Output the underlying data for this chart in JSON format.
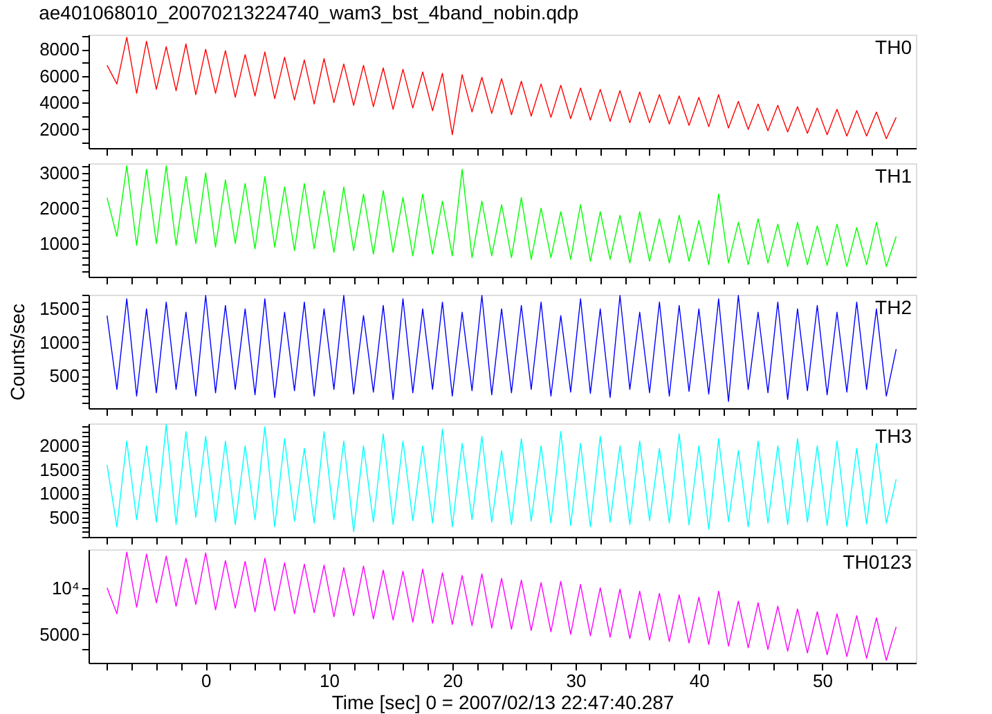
{
  "chart_data": [
    {
      "type": "line",
      "title": "ae401068010_20070213224740_wam3_bst_4band_nobin.qdp",
      "tick_labels": "y",
      "x": [
        -8,
        -7.2,
        -6.4,
        -5.6,
        -4.8,
        -4,
        -3.2,
        -2.4,
        -1.6,
        -0.8,
        0,
        0.8,
        1.6,
        2.4,
        3.2,
        4,
        4.8,
        5.6,
        6.4,
        7.2,
        8,
        8.8,
        9.6,
        10.4,
        11.2,
        12,
        12.8,
        13.6,
        14.4,
        15.2,
        16,
        16.8,
        17.6,
        18.4,
        19.2,
        20,
        20.8,
        21.6,
        22.4,
        23.2,
        24,
        24.8,
        25.6,
        26.4,
        27.2,
        28,
        28.8,
        29.6,
        30.4,
        31.2,
        32,
        32.8,
        33.6,
        34.4,
        35.2,
        36,
        36.8,
        37.6,
        38.4,
        39.2,
        40,
        40.8,
        41.6,
        42.4,
        43.2,
        44,
        44.8,
        45.6,
        46.4,
        47.2,
        48,
        48.8,
        49.6,
        50.4,
        51.2,
        52,
        52.8,
        53.6,
        54.4,
        55.2,
        56
      ],
      "series": [
        {
          "name": "TH0",
          "color": "#ff0000",
          "values": [
            6800,
            5400,
            8900,
            4700,
            8600,
            5000,
            8200,
            4900,
            8400,
            4600,
            8000,
            4700,
            7900,
            4400,
            7600,
            4500,
            7800,
            4300,
            7400,
            4200,
            7200,
            3900,
            7300,
            4000,
            6900,
            3800,
            6800,
            3700,
            6600,
            3500,
            6500,
            3600,
            6300,
            3400,
            6200,
            1600,
            6100,
            3300,
            5900,
            3200,
            5800,
            3100,
            5600,
            3000,
            5400,
            2900,
            5300,
            2800,
            5100,
            2700,
            5000,
            2600,
            4900,
            2500,
            4800,
            2500,
            4600,
            2400,
            4500,
            2300,
            4400,
            2200,
            4600,
            2100,
            4100,
            2000,
            3900,
            1900,
            3800,
            1800,
            3700,
            1700,
            3600,
            1600,
            3500,
            1500,
            3400,
            1500,
            3300,
            1300,
            2900
          ]
        }
      ],
      "xlim": [
        -9.5,
        57.6
      ],
      "xticks": [
        {
          "value": -8,
          "label": null
        },
        {
          "value": -6,
          "label": null
        },
        {
          "value": -4,
          "label": null
        },
        {
          "value": -2,
          "label": null
        },
        0,
        {
          "value": 2,
          "label": null
        },
        {
          "value": 4,
          "label": null
        },
        {
          "value": 6,
          "label": null
        },
        {
          "value": 8,
          "label": null
        },
        10,
        {
          "value": 12,
          "label": null
        },
        {
          "value": 14,
          "label": null
        },
        {
          "value": 16,
          "label": null
        },
        {
          "value": 18,
          "label": null
        },
        20,
        {
          "value": 22,
          "label": null
        },
        {
          "value": 24,
          "label": null
        },
        {
          "value": 26,
          "label": null
        },
        {
          "value": 28,
          "label": null
        },
        30,
        {
          "value": 32,
          "label": null
        },
        {
          "value": 34,
          "label": null
        },
        {
          "value": 36,
          "label": null
        },
        {
          "value": 38,
          "label": null
        },
        40,
        {
          "value": 42,
          "label": null
        },
        {
          "value": 44,
          "label": null
        },
        {
          "value": 46,
          "label": null
        },
        {
          "value": 48,
          "label": null
        },
        50,
        {
          "value": 52,
          "label": null
        },
        {
          "value": 54,
          "label": null
        },
        {
          "value": 56,
          "label": null
        }
      ],
      "ylim": [
        600,
        9100
      ],
      "yticks": [
        {
          "value": 1000,
          "label": null
        },
        2000,
        {
          "value": 3000,
          "label": null
        },
        4000,
        {
          "value": 5000,
          "label": null
        },
        6000,
        {
          "value": 7000,
          "label": null
        },
        8000,
        {
          "value": 9000,
          "label": null
        }
      ]
    },
    {
      "type": "line",
      "tick_labels": "y",
      "x": [
        -8,
        -7.2,
        -6.4,
        -5.6,
        -4.8,
        -4,
        -3.2,
        -2.4,
        -1.6,
        -0.8,
        0,
        0.8,
        1.6,
        2.4,
        3.2,
        4,
        4.8,
        5.6,
        6.4,
        7.2,
        8,
        8.8,
        9.6,
        10.4,
        11.2,
        12,
        12.8,
        13.6,
        14.4,
        15.2,
        16,
        16.8,
        17.6,
        18.4,
        19.2,
        20,
        20.8,
        21.6,
        22.4,
        23.2,
        24,
        24.8,
        25.6,
        26.4,
        27.2,
        28,
        28.8,
        29.6,
        30.4,
        31.2,
        32,
        32.8,
        33.6,
        34.4,
        35.2,
        36,
        36.8,
        37.6,
        38.4,
        39.2,
        40,
        40.8,
        41.6,
        42.4,
        43.2,
        44,
        44.8,
        45.6,
        46.4,
        47.2,
        48,
        48.8,
        49.6,
        50.4,
        51.2,
        52,
        52.8,
        53.6,
        54.4,
        55.2,
        56
      ],
      "series": [
        {
          "name": "TH1",
          "color": "#00ff00",
          "values": [
            2300,
            1200,
            3200,
            950,
            3100,
            1000,
            3200,
            950,
            2900,
            1000,
            3000,
            900,
            2800,
            1000,
            2700,
            850,
            2900,
            900,
            2600,
            800,
            2700,
            850,
            2500,
            750,
            2600,
            800,
            2400,
            700,
            2500,
            750,
            2300,
            650,
            2400,
            700,
            2200,
            650,
            3100,
            600,
            2200,
            650,
            2100,
            600,
            2300,
            550,
            2000,
            600,
            1900,
            550,
            2100,
            500,
            1900,
            550,
            1800,
            450,
            1900,
            500,
            1700,
            450,
            1800,
            500,
            1650,
            400,
            2400,
            450,
            1600,
            400,
            1700,
            450,
            1550,
            350,
            1600,
            400,
            1500,
            380,
            1550,
            350,
            1450,
            400,
            1600,
            350,
            1200
          ]
        }
      ],
      "xlim": [
        -9.5,
        57.6
      ],
      "xticks": [
        {
          "value": -8,
          "label": null
        },
        {
          "value": -6,
          "label": null
        },
        {
          "value": -4,
          "label": null
        },
        {
          "value": -2,
          "label": null
        },
        0,
        {
          "value": 2,
          "label": null
        },
        {
          "value": 4,
          "label": null
        },
        {
          "value": 6,
          "label": null
        },
        {
          "value": 8,
          "label": null
        },
        10,
        {
          "value": 12,
          "label": null
        },
        {
          "value": 14,
          "label": null
        },
        {
          "value": 16,
          "label": null
        },
        {
          "value": 18,
          "label": null
        },
        20,
        {
          "value": 22,
          "label": null
        },
        {
          "value": 24,
          "label": null
        },
        {
          "value": 26,
          "label": null
        },
        {
          "value": 28,
          "label": null
        },
        30,
        {
          "value": 32,
          "label": null
        },
        {
          "value": 34,
          "label": null
        },
        {
          "value": 36,
          "label": null
        },
        {
          "value": 38,
          "label": null
        },
        40,
        {
          "value": 42,
          "label": null
        },
        {
          "value": 44,
          "label": null
        },
        {
          "value": 46,
          "label": null
        },
        {
          "value": 48,
          "label": null
        },
        50,
        {
          "value": 52,
          "label": null
        },
        {
          "value": 54,
          "label": null
        },
        {
          "value": 56,
          "label": null
        }
      ],
      "ylim": [
        60,
        3270
      ],
      "yticks": [
        {
          "value": 200,
          "label": null
        },
        {
          "value": 400,
          "label": null
        },
        {
          "value": 600,
          "label": null
        },
        {
          "value": 800,
          "label": null
        },
        1000,
        {
          "value": 1200,
          "label": null
        },
        {
          "value": 1400,
          "label": null
        },
        {
          "value": 1600,
          "label": null
        },
        {
          "value": 1800,
          "label": null
        },
        2000,
        {
          "value": 2200,
          "label": null
        },
        {
          "value": 2400,
          "label": null
        },
        {
          "value": 2600,
          "label": null
        },
        {
          "value": 2800,
          "label": null
        },
        3000,
        {
          "value": 3200,
          "label": null
        }
      ]
    },
    {
      "type": "line",
      "tick_labels": "y",
      "ylabel": "Counts/sec",
      "x": [
        -8,
        -7.2,
        -6.4,
        -5.6,
        -4.8,
        -4,
        -3.2,
        -2.4,
        -1.6,
        -0.8,
        0,
        0.8,
        1.6,
        2.4,
        3.2,
        4,
        4.8,
        5.6,
        6.4,
        7.2,
        8,
        8.8,
        9.6,
        10.4,
        11.2,
        12,
        12.8,
        13.6,
        14.4,
        15.2,
        16,
        16.8,
        17.6,
        18.4,
        19.2,
        20,
        20.8,
        21.6,
        22.4,
        23.2,
        24,
        24.8,
        25.6,
        26.4,
        27.2,
        28,
        28.8,
        29.6,
        30.4,
        31.2,
        32,
        32.8,
        33.6,
        34.4,
        35.2,
        36,
        36.8,
        37.6,
        38.4,
        39.2,
        40,
        40.8,
        41.6,
        42.4,
        43.2,
        44,
        44.8,
        45.6,
        46.4,
        47.2,
        48,
        48.8,
        49.6,
        50.4,
        51.2,
        52,
        52.8,
        53.6,
        54.4,
        55.2,
        56
      ],
      "series": [
        {
          "name": "TH2",
          "color": "#0000ff",
          "values": [
            1400,
            300,
            1650,
            200,
            1500,
            250,
            1600,
            300,
            1450,
            200,
            1700,
            250,
            1550,
            300,
            1500,
            220,
            1650,
            180,
            1450,
            280,
            1600,
            200,
            1500,
            300,
            1700,
            230,
            1400,
            260,
            1550,
            150,
            1650,
            250,
            1500,
            300,
            1600,
            200,
            1450,
            280,
            1700,
            220,
            1500,
            250,
            1550,
            300,
            1600,
            200,
            1400,
            260,
            1650,
            240,
            1500,
            180,
            1700,
            300,
            1450,
            250,
            1600,
            200,
            1550,
            270,
            1500,
            230,
            1650,
            120,
            1700,
            300,
            1450,
            250,
            1600,
            150,
            1500,
            280,
            1550,
            220,
            1450,
            260,
            1600,
            300,
            1500,
            200,
            900
          ]
        }
      ],
      "xlim": [
        -9.5,
        57.6
      ],
      "xticks": [
        {
          "value": -8,
          "label": null
        },
        {
          "value": -6,
          "label": null
        },
        {
          "value": -4,
          "label": null
        },
        {
          "value": -2,
          "label": null
        },
        0,
        {
          "value": 2,
          "label": null
        },
        {
          "value": 4,
          "label": null
        },
        {
          "value": 6,
          "label": null
        },
        {
          "value": 8,
          "label": null
        },
        10,
        {
          "value": 12,
          "label": null
        },
        {
          "value": 14,
          "label": null
        },
        {
          "value": 16,
          "label": null
        },
        {
          "value": 18,
          "label": null
        },
        20,
        {
          "value": 22,
          "label": null
        },
        {
          "value": 24,
          "label": null
        },
        {
          "value": 26,
          "label": null
        },
        {
          "value": 28,
          "label": null
        },
        30,
        {
          "value": 32,
          "label": null
        },
        {
          "value": 34,
          "label": null
        },
        {
          "value": 36,
          "label": null
        },
        {
          "value": 38,
          "label": null
        },
        40,
        {
          "value": 42,
          "label": null
        },
        {
          "value": 44,
          "label": null
        },
        {
          "value": 46,
          "label": null
        },
        {
          "value": 48,
          "label": null
        },
        50,
        {
          "value": 52,
          "label": null
        },
        {
          "value": 54,
          "label": null
        },
        {
          "value": 56,
          "label": null
        }
      ],
      "ylim": [
        20,
        1710
      ],
      "yticks": [
        {
          "value": 100,
          "label": null
        },
        {
          "value": 200,
          "label": null
        },
        {
          "value": 300,
          "label": null
        },
        {
          "value": 400,
          "label": null
        },
        500,
        {
          "value": 600,
          "label": null
        },
        {
          "value": 700,
          "label": null
        },
        {
          "value": 800,
          "label": null
        },
        {
          "value": 900,
          "label": null
        },
        1000,
        {
          "value": 1100,
          "label": null
        },
        {
          "value": 1200,
          "label": null
        },
        {
          "value": 1300,
          "label": null
        },
        {
          "value": 1400,
          "label": null
        },
        1500,
        {
          "value": 1600,
          "label": null
        },
        {
          "value": 1700,
          "label": null
        }
      ]
    },
    {
      "type": "line",
      "tick_labels": "y",
      "x": [
        -8,
        -7.2,
        -6.4,
        -5.6,
        -4.8,
        -4,
        -3.2,
        -2.4,
        -1.6,
        -0.8,
        0,
        0.8,
        1.6,
        2.4,
        3.2,
        4,
        4.8,
        5.6,
        6.4,
        7.2,
        8,
        8.8,
        9.6,
        10.4,
        11.2,
        12,
        12.8,
        13.6,
        14.4,
        15.2,
        16,
        16.8,
        17.6,
        18.4,
        19.2,
        20,
        20.8,
        21.6,
        22.4,
        23.2,
        24,
        24.8,
        25.6,
        26.4,
        27.2,
        28,
        28.8,
        29.6,
        30.4,
        31.2,
        32,
        32.8,
        33.6,
        34.4,
        35.2,
        36,
        36.8,
        37.6,
        38.4,
        39.2,
        40,
        40.8,
        41.6,
        42.4,
        43.2,
        44,
        44.8,
        45.6,
        46.4,
        47.2,
        48,
        48.8,
        49.6,
        50.4,
        51.2,
        52,
        52.8,
        53.6,
        54.4,
        55.2,
        56
      ],
      "series": [
        {
          "name": "TH3",
          "color": "#00ffff",
          "values": [
            1600,
            300,
            2100,
            450,
            2000,
            400,
            2450,
            350,
            2300,
            500,
            2200,
            400,
            2100,
            350,
            2000,
            450,
            2400,
            300,
            2150,
            420,
            1950,
            380,
            2300,
            450,
            2100,
            200,
            2000,
            400,
            2250,
            350,
            2100,
            430,
            2000,
            380,
            2350,
            300,
            2050,
            450,
            2200,
            400,
            1900,
            350,
            2150,
            420,
            2000,
            380,
            2300,
            330,
            2050,
            300,
            2200,
            400,
            2000,
            350,
            2100,
            430,
            1950,
            380,
            2250,
            340,
            2000,
            250,
            2150,
            410,
            1900,
            300,
            2100,
            380,
            2000,
            350,
            2150,
            400,
            2000,
            330,
            2100,
            300,
            1950,
            360,
            2050,
            380,
            1300
          ]
        }
      ],
      "xlim": [
        -9.5,
        57.6
      ],
      "xticks": [
        {
          "value": -8,
          "label": null
        },
        {
          "value": -6,
          "label": null
        },
        {
          "value": -4,
          "label": null
        },
        {
          "value": -2,
          "label": null
        },
        0,
        {
          "value": 2,
          "label": null
        },
        {
          "value": 4,
          "label": null
        },
        {
          "value": 6,
          "label": null
        },
        {
          "value": 8,
          "label": null
        },
        10,
        {
          "value": 12,
          "label": null
        },
        {
          "value": 14,
          "label": null
        },
        {
          "value": 16,
          "label": null
        },
        {
          "value": 18,
          "label": null
        },
        20,
        {
          "value": 22,
          "label": null
        },
        {
          "value": 24,
          "label": null
        },
        {
          "value": 26,
          "label": null
        },
        {
          "value": 28,
          "label": null
        },
        30,
        {
          "value": 32,
          "label": null
        },
        {
          "value": 34,
          "label": null
        },
        {
          "value": 36,
          "label": null
        },
        {
          "value": 38,
          "label": null
        },
        40,
        {
          "value": 42,
          "label": null
        },
        {
          "value": 44,
          "label": null
        },
        {
          "value": 46,
          "label": null
        },
        {
          "value": 48,
          "label": null
        },
        50,
        {
          "value": 52,
          "label": null
        },
        {
          "value": 54,
          "label": null
        },
        {
          "value": 56,
          "label": null
        }
      ],
      "ylim": [
        90,
        2470
      ],
      "yticks": [
        {
          "value": 100,
          "label": null
        },
        {
          "value": 200,
          "label": null
        },
        {
          "value": 300,
          "label": null
        },
        {
          "value": 400,
          "label": null
        },
        500,
        {
          "value": 600,
          "label": null
        },
        {
          "value": 700,
          "label": null
        },
        {
          "value": 800,
          "label": null
        },
        {
          "value": 900,
          "label": null
        },
        1000,
        {
          "value": 1100,
          "label": null
        },
        {
          "value": 1200,
          "label": null
        },
        {
          "value": 1300,
          "label": null
        },
        {
          "value": 1400,
          "label": null
        },
        1500,
        {
          "value": 1600,
          "label": null
        },
        {
          "value": 1700,
          "label": null
        },
        {
          "value": 1800,
          "label": null
        },
        {
          "value": 1900,
          "label": null
        },
        2000,
        {
          "value": 2100,
          "label": null
        },
        {
          "value": 2200,
          "label": null
        },
        {
          "value": 2300,
          "label": null
        },
        {
          "value": 2400,
          "label": null
        }
      ]
    },
    {
      "type": "line",
      "log": "y",
      "xlabel": "Time [sec] 0 = 2007/02/13 22:47:40.287",
      "x": [
        -8,
        -7.2,
        -6.4,
        -5.6,
        -4.8,
        -4,
        -3.2,
        -2.4,
        -1.6,
        -0.8,
        0,
        0.8,
        1.6,
        2.4,
        3.2,
        4,
        4.8,
        5.6,
        6.4,
        7.2,
        8,
        8.8,
        9.6,
        10.4,
        11.2,
        12,
        12.8,
        13.6,
        14.4,
        15.2,
        16,
        16.8,
        17.6,
        18.4,
        19.2,
        20,
        20.8,
        21.6,
        22.4,
        23.2,
        24,
        24.8,
        25.6,
        26.4,
        27.2,
        28,
        28.8,
        29.6,
        30.4,
        31.2,
        32,
        32.8,
        33.6,
        34.4,
        35.2,
        36,
        36.8,
        37.6,
        38.4,
        39.2,
        40,
        40.8,
        41.6,
        42.4,
        43.2,
        44,
        44.8,
        45.6,
        46.4,
        47.2,
        48,
        48.8,
        49.6,
        50.4,
        51.2,
        52,
        52.8,
        53.6,
        54.4,
        55.2,
        56
      ],
      "series": [
        {
          "name": "TH0123",
          "color": "#ff00ff",
          "values": [
            10000,
            6800,
            17000,
            7500,
            16500,
            8000,
            16000,
            7600,
            15500,
            7800,
            16800,
            7200,
            15000,
            7400,
            14800,
            7000,
            15500,
            7100,
            14500,
            6800,
            14200,
            6900,
            14000,
            6500,
            13500,
            6600,
            13800,
            6300,
            13000,
            6200,
            12800,
            6000,
            13200,
            5900,
            12500,
            5800,
            12000,
            5700,
            12300,
            5500,
            11500,
            5400,
            11200,
            5300,
            10800,
            5200,
            11000,
            5000,
            10500,
            4900,
            10000,
            4800,
            9800,
            4700,
            9500,
            4600,
            9200,
            4500,
            9000,
            4400,
            8700,
            4300,
            9500,
            4200,
            8200,
            4100,
            8000,
            4000,
            7600,
            3900,
            7300,
            3800,
            7000,
            3700,
            6800,
            3600,
            6600,
            3500,
            6400,
            3400,
            5600
          ]
        }
      ],
      "xlim": [
        -9.5,
        57.6
      ],
      "xticks": [
        {
          "value": -8,
          "label": null
        },
        {
          "value": -6,
          "label": null
        },
        {
          "value": -4,
          "label": null
        },
        {
          "value": -2,
          "label": null
        },
        0,
        {
          "value": 2,
          "label": null
        },
        {
          "value": 4,
          "label": null
        },
        {
          "value": 6,
          "label": null
        },
        {
          "value": 8,
          "label": null
        },
        10,
        {
          "value": 12,
          "label": null
        },
        {
          "value": 14,
          "label": null
        },
        {
          "value": 16,
          "label": null
        },
        {
          "value": 18,
          "label": null
        },
        20,
        {
          "value": 22,
          "label": null
        },
        {
          "value": 24,
          "label": null
        },
        {
          "value": 26,
          "label": null
        },
        {
          "value": 28,
          "label": null
        },
        30,
        {
          "value": 32,
          "label": null
        },
        {
          "value": 34,
          "label": null
        },
        {
          "value": 36,
          "label": null
        },
        {
          "value": 38,
          "label": null
        },
        40,
        {
          "value": 42,
          "label": null
        },
        {
          "value": 44,
          "label": null
        },
        {
          "value": 46,
          "label": null
        },
        {
          "value": 48,
          "label": null
        },
        50,
        {
          "value": 52,
          "label": null
        },
        {
          "value": 54,
          "label": null
        },
        {
          "value": 56,
          "label": null
        }
      ],
      "ylim": [
        3280,
        17700
      ],
      "yticks": [
        {
          "value": 4000,
          "label": null
        },
        5000,
        {
          "value": 6000,
          "label": null
        },
        {
          "value": 7000,
          "label": null
        },
        {
          "value": 8000,
          "label": null
        },
        {
          "value": 9000,
          "label": null
        },
        {
          "value": 10000,
          "label": "10⁴"
        }
      ]
    }
  ]
}
